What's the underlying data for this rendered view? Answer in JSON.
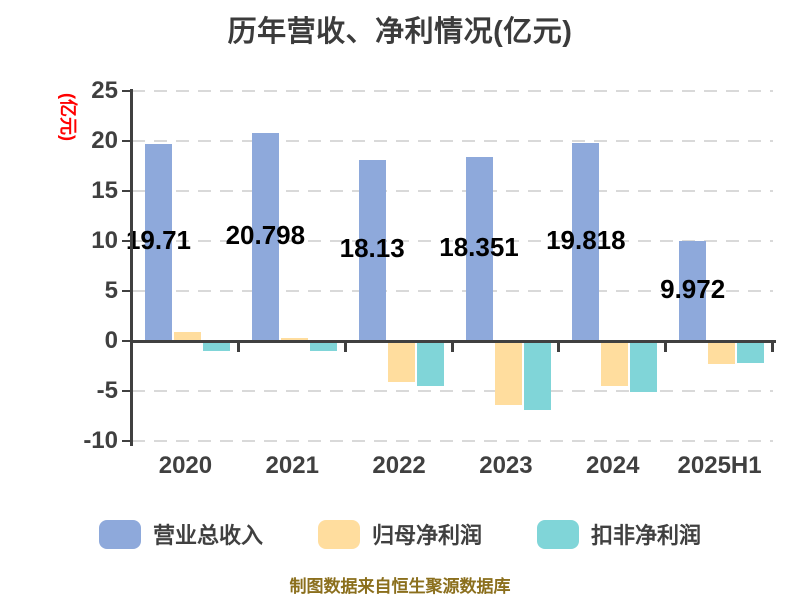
{
  "title": "历年营收、净利情况(亿元)",
  "footer": "制图数据来自恒生聚源数据库",
  "colors": {
    "background": "#FFFFFF",
    "axis": "#404040",
    "grid": "#D9D9D9",
    "title_text": "#3B3B3B",
    "tick_text": "#404040",
    "y_axis_title_text": "#FF0000",
    "value_label_text": "#000000",
    "footer_text": "#8B6F1D"
  },
  "chart_data": {
    "type": "bar",
    "title": "历年营收、净利情况(亿元)",
    "ylabel": "(亿元)",
    "xlabel": "",
    "categories": [
      "2020",
      "2021",
      "2022",
      "2023",
      "2024",
      "2025H1"
    ],
    "series": [
      {
        "name": "营业总收入",
        "key": "revenue",
        "color": "#8EA9DB",
        "values": [
          19.71,
          20.798,
          18.13,
          18.351,
          19.818,
          9.972
        ],
        "show_value_labels": true,
        "value_labels": [
          "19.71",
          "20.798",
          "18.13",
          "18.351",
          "19.818",
          "9.972"
        ]
      },
      {
        "name": "归母净利润",
        "key": "net-profit",
        "color": "#FFDD9E",
        "values": [
          0.9,
          0.35,
          -4.1,
          -6.4,
          -4.5,
          -2.3
        ],
        "show_value_labels": false
      },
      {
        "name": "扣非净利润",
        "key": "deducted-net-profit",
        "color": "#80D5D8",
        "values": [
          -0.95,
          -1.0,
          -4.5,
          -6.9,
          -5.1,
          -2.2
        ],
        "show_value_labels": false
      }
    ],
    "ylim": [
      -10,
      25
    ],
    "yticks": [
      25,
      20,
      15,
      10,
      5,
      0,
      -5,
      -10
    ],
    "grid": "horizontal-dashed",
    "legend_position": "bottom"
  }
}
